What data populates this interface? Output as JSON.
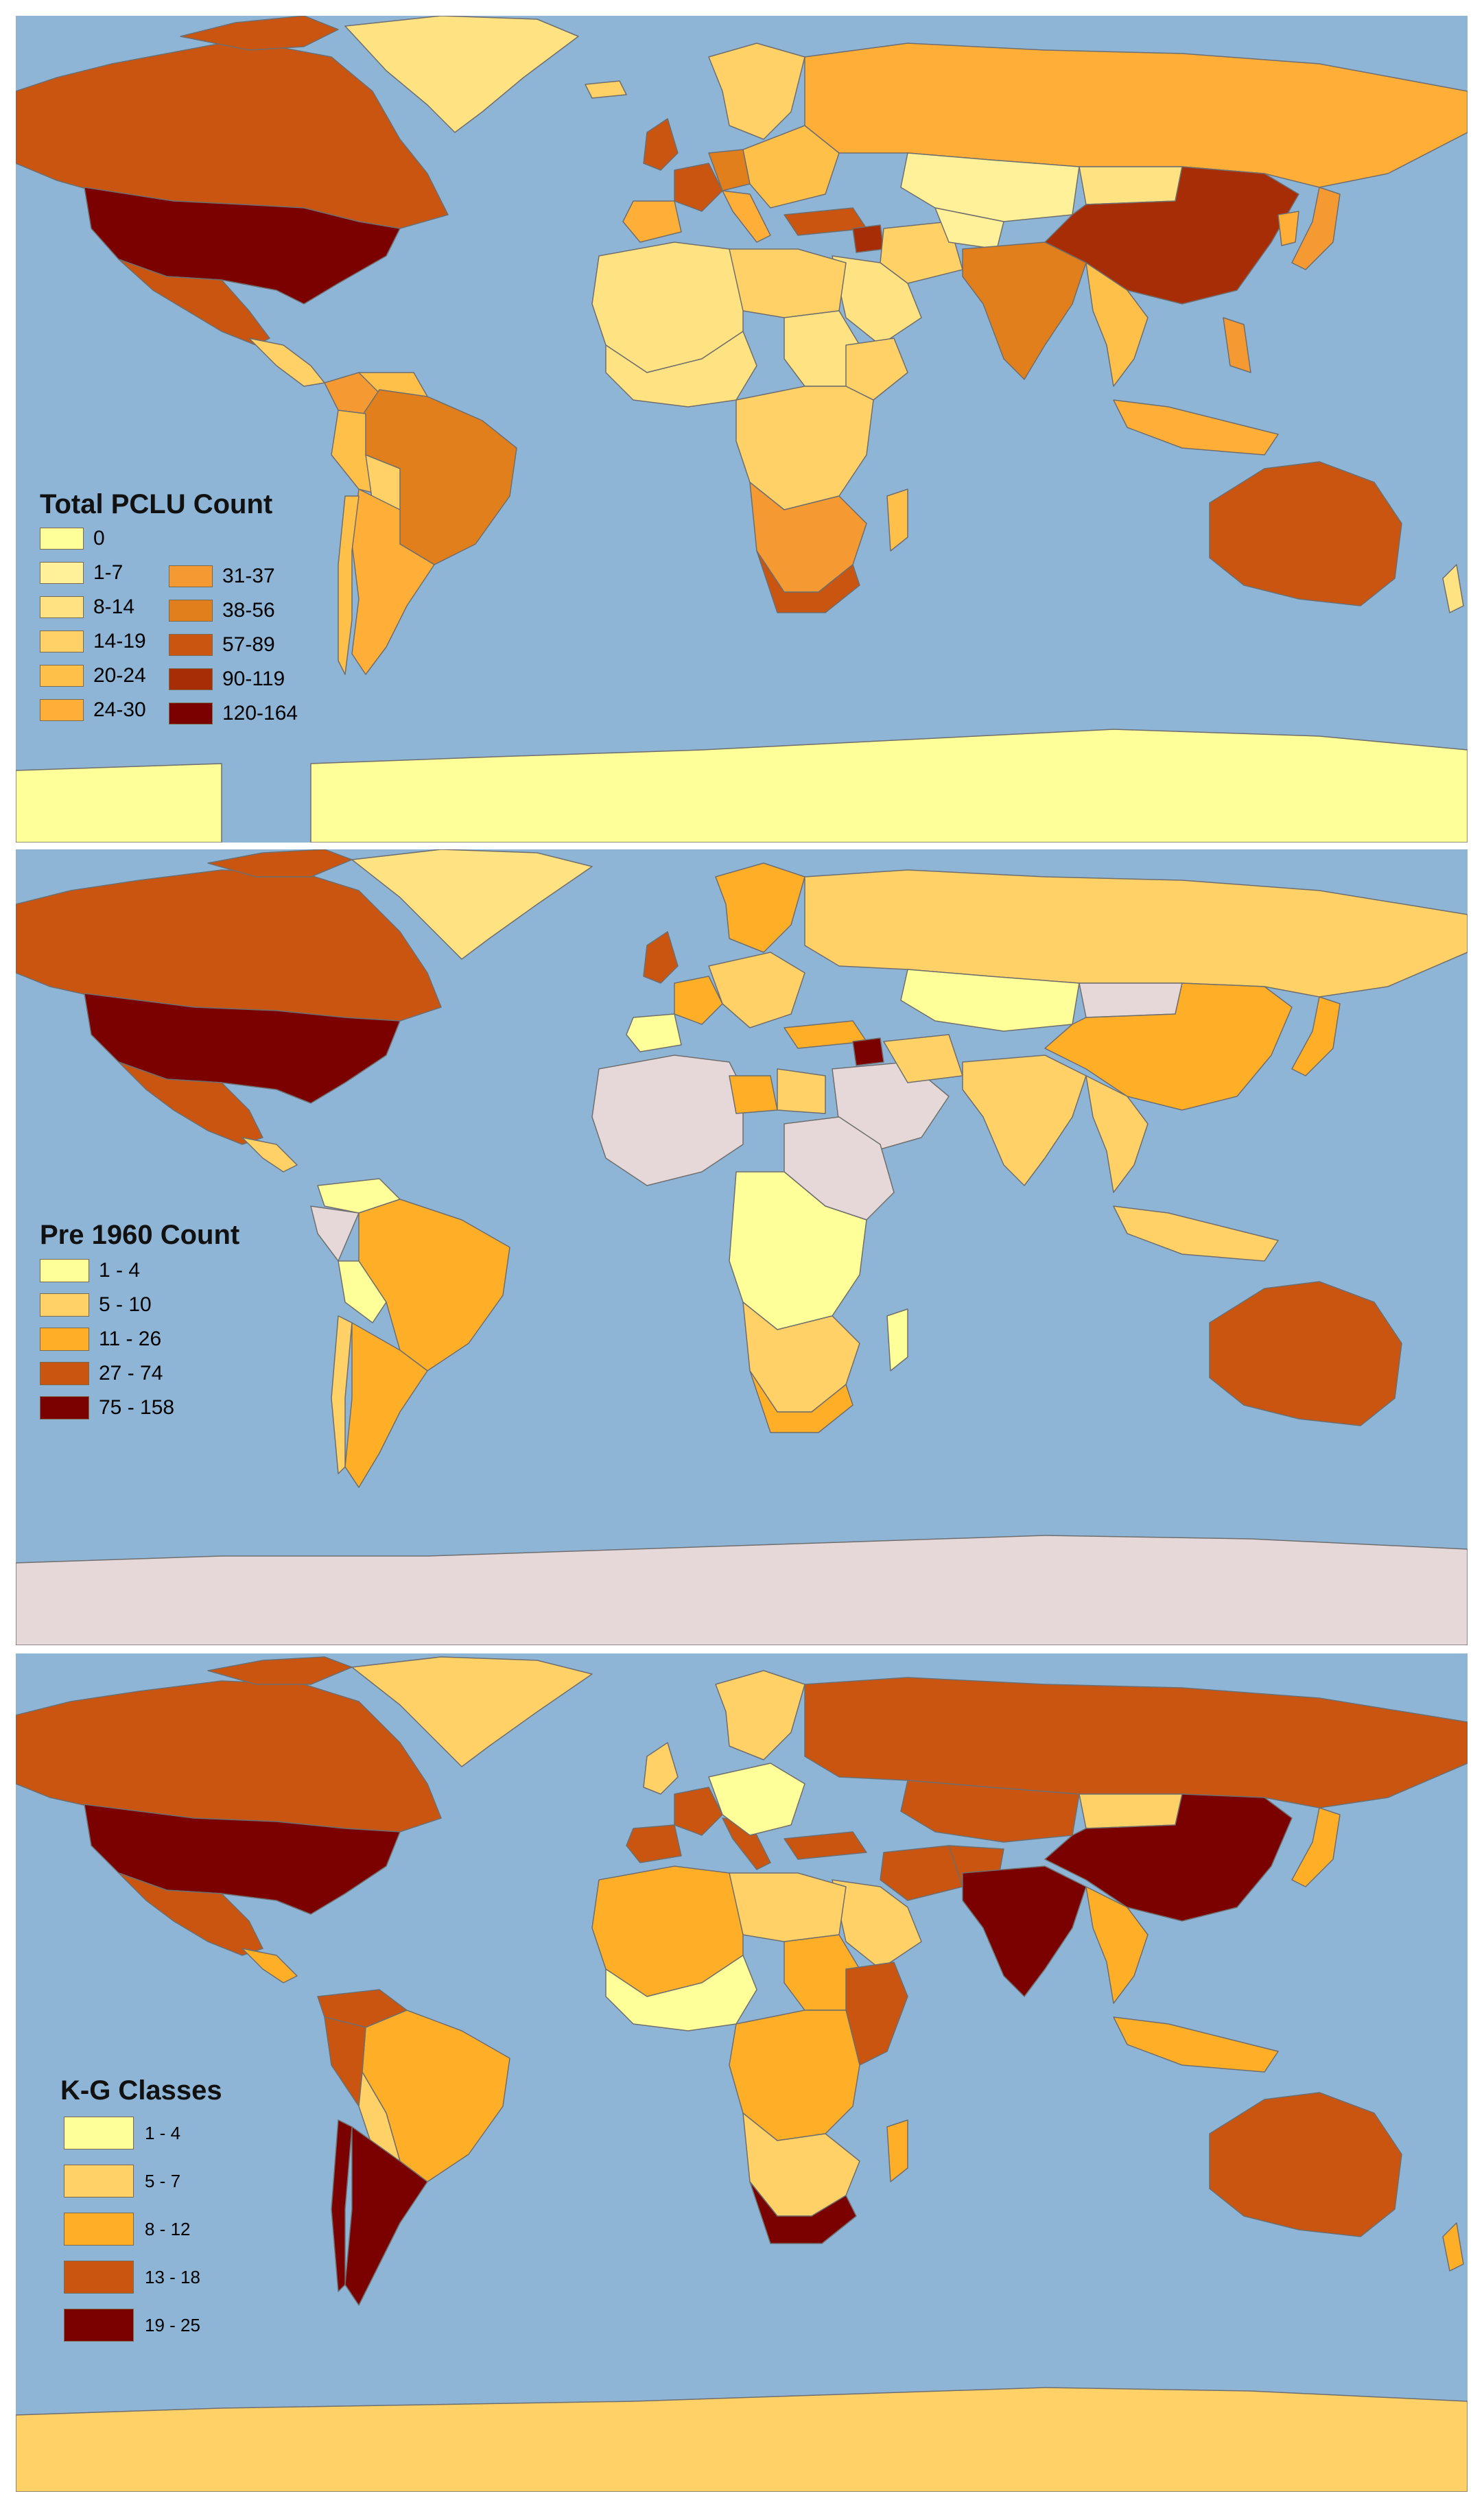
{
  "maps": [
    {
      "legend": {
        "title": "Total PCLU Count",
        "items": [
          {
            "label": "0",
            "color": "#ffff99"
          },
          {
            "label": "1-7",
            "color": "#fff09a"
          },
          {
            "label": "8-14",
            "color": "#ffe282"
          },
          {
            "label": "14-19",
            "color": "#ffd166"
          },
          {
            "label": "20-24",
            "color": "#ffc04a"
          },
          {
            "label": "24-30",
            "color": "#ffae38"
          },
          {
            "label": "31-37",
            "color": "#f59a32"
          },
          {
            "label": "38-56",
            "color": "#e07f1c"
          },
          {
            "label": "57-89",
            "color": "#c95510"
          },
          {
            "label": "90-119",
            "color": "#a72d06"
          },
          {
            "label": "120-164",
            "color": "#7b0000"
          }
        ]
      }
    },
    {
      "legend": {
        "title": "Pre 1960 Count",
        "items": [
          {
            "label": "1 - 4",
            "color": "#ffff99"
          },
          {
            "label": "5 - 10",
            "color": "#ffd166"
          },
          {
            "label": "11 - 26",
            "color": "#ffae28"
          },
          {
            "label": "27 - 74",
            "color": "#c95510"
          },
          {
            "label": "75 - 158",
            "color": "#7b0000"
          }
        ]
      }
    },
    {
      "legend": {
        "title": "K-G Classes",
        "items": [
          {
            "label": "1 - 4",
            "color": "#ffff99"
          },
          {
            "label": "5 - 7",
            "color": "#ffd166"
          },
          {
            "label": "8 - 12",
            "color": "#ffae28"
          },
          {
            "label": "13 - 18",
            "color": "#c95510"
          },
          {
            "label": "19 - 25",
            "color": "#7b0000"
          }
        ]
      }
    }
  ],
  "colors": {
    "ocean": "#8fb5d6",
    "no_data": "#e6d8d8",
    "border": "#6e6e6e"
  }
}
